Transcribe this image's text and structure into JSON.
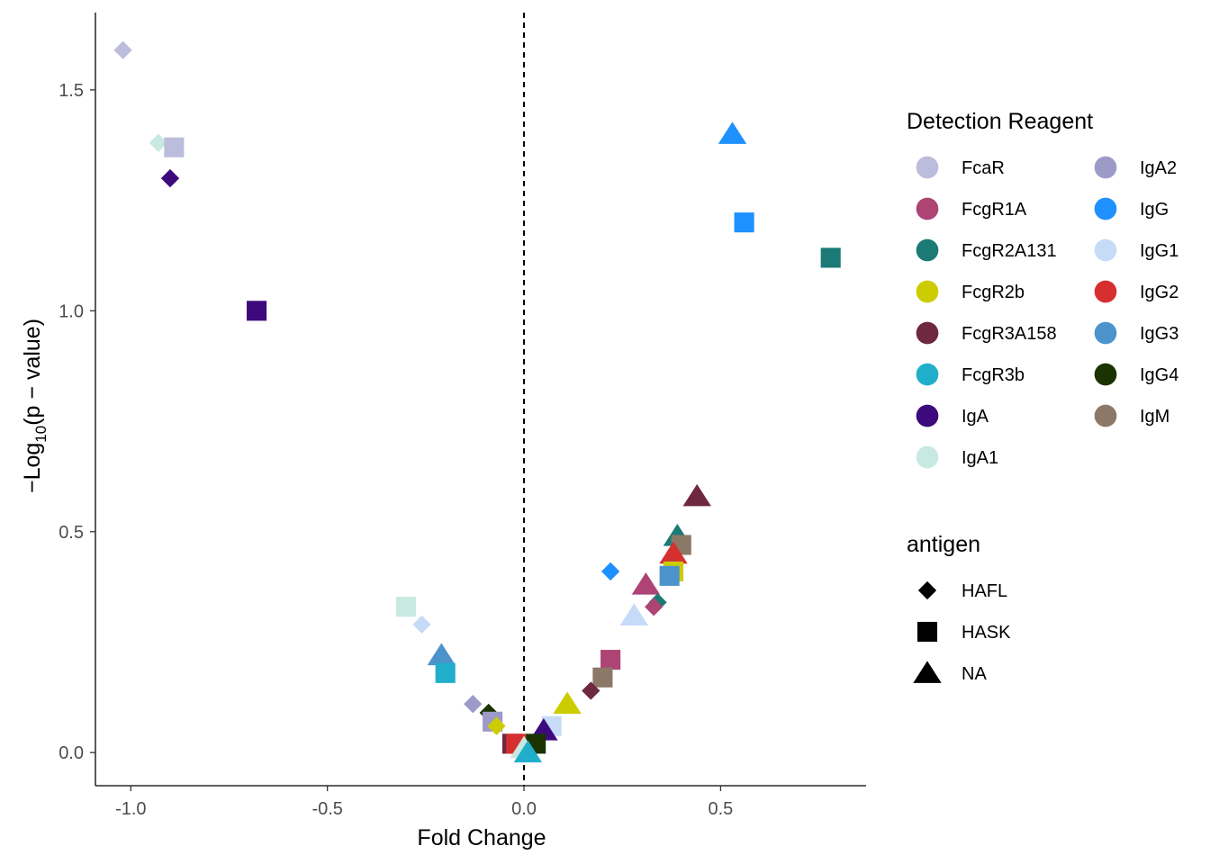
{
  "chart_data": {
    "type": "scatter",
    "xlabel": "Fold Change",
    "ylabel_parts": [
      "−Log",
      "10",
      "(p − value)"
    ],
    "xlim": [
      -1.09,
      0.87
    ],
    "ylim": [
      -0.075,
      1.675
    ],
    "x_ticks": [
      -1.0,
      -0.5,
      0.0,
      0.5
    ],
    "x_tick_labels": [
      "-1.0",
      "-0.5",
      "0.0",
      "0.5"
    ],
    "y_ticks": [
      0.0,
      0.5,
      1.0,
      1.5
    ],
    "y_tick_labels": [
      "0.0",
      "0.5",
      "1.0",
      "1.5"
    ],
    "vline_x": 0,
    "colors": {
      "FcaR": "#bcbddc",
      "FcgR1A": "#ad4474",
      "FcgR2A131": "#1b7a76",
      "FcgR2b": "#cccc00",
      "FcgR3A158": "#6e2840",
      "FcgR3b": "#21aecb",
      "IgA": "#3d0a7e",
      "IgA1": "#c7e9e2",
      "IgA2": "#9e9ac8",
      "IgG": "#1e90ff",
      "IgG1": "#c6dbf7",
      "IgG2": "#d62f2f",
      "IgG3": "#4c93cc",
      "IgG4": "#1a3300",
      "IgM": "#8c7867"
    },
    "legend_color": {
      "title": "Detection Reagent",
      "items": [
        "FcaR",
        "FcgR1A",
        "FcgR2A131",
        "FcgR2b",
        "FcgR3A158",
        "FcgR3b",
        "IgA",
        "IgA1",
        "IgA2",
        "IgG",
        "IgG1",
        "IgG2",
        "IgG3",
        "IgG4",
        "IgM"
      ]
    },
    "legend_shape": {
      "title": "antigen",
      "items": [
        {
          "label": "HAFL",
          "shape": "diamond"
        },
        {
          "label": "HASK",
          "shape": "square"
        },
        {
          "label": "NA",
          "shape": "triangle"
        }
      ]
    },
    "points": [
      {
        "x": -1.02,
        "y": 1.59,
        "reagent": "FcaR",
        "antigen": "HAFL"
      },
      {
        "x": -0.93,
        "y": 1.38,
        "reagent": "IgA1",
        "antigen": "HAFL"
      },
      {
        "x": -0.89,
        "y": 1.37,
        "reagent": "FcaR",
        "antigen": "HASK"
      },
      {
        "x": -0.9,
        "y": 1.3,
        "reagent": "IgA",
        "antigen": "HAFL"
      },
      {
        "x": -0.68,
        "y": 1.0,
        "reagent": "IgA",
        "antigen": "HASK"
      },
      {
        "x": 0.53,
        "y": 1.4,
        "reagent": "IgG",
        "antigen": "NA"
      },
      {
        "x": 0.56,
        "y": 1.2,
        "reagent": "IgG",
        "antigen": "HASK"
      },
      {
        "x": 0.78,
        "y": 1.12,
        "reagent": "FcgR2A131",
        "antigen": "HASK"
      },
      {
        "x": 0.44,
        "y": 0.58,
        "reagent": "FcgR3A158",
        "antigen": "NA"
      },
      {
        "x": 0.39,
        "y": 0.49,
        "reagent": "FcgR2A131",
        "antigen": "NA"
      },
      {
        "x": 0.4,
        "y": 0.47,
        "reagent": "IgM",
        "antigen": "HASK"
      },
      {
        "x": 0.38,
        "y": 0.45,
        "reagent": "IgG2",
        "antigen": "NA"
      },
      {
        "x": 0.38,
        "y": 0.41,
        "reagent": "FcgR2b",
        "antigen": "HASK"
      },
      {
        "x": 0.37,
        "y": 0.4,
        "reagent": "IgG3",
        "antigen": "HASK"
      },
      {
        "x": 0.22,
        "y": 0.41,
        "reagent": "IgG",
        "antigen": "HAFL"
      },
      {
        "x": 0.31,
        "y": 0.38,
        "reagent": "FcgR1A",
        "antigen": "NA"
      },
      {
        "x": 0.34,
        "y": 0.34,
        "reagent": "FcgR2A131",
        "antigen": "HAFL"
      },
      {
        "x": 0.33,
        "y": 0.33,
        "reagent": "FcgR1A",
        "antigen": "HAFL"
      },
      {
        "x": 0.28,
        "y": 0.31,
        "reagent": "IgG1",
        "antigen": "NA"
      },
      {
        "x": 0.22,
        "y": 0.21,
        "reagent": "FcgR1A",
        "antigen": "HASK"
      },
      {
        "x": 0.2,
        "y": 0.17,
        "reagent": "IgM",
        "antigen": "HASK"
      },
      {
        "x": 0.17,
        "y": 0.14,
        "reagent": "FcgR3A158",
        "antigen": "HAFL"
      },
      {
        "x": 0.11,
        "y": 0.11,
        "reagent": "FcgR2b",
        "antigen": "NA"
      },
      {
        "x": 0.07,
        "y": 0.06,
        "reagent": "IgG1",
        "antigen": "HASK"
      },
      {
        "x": 0.05,
        "y": 0.05,
        "reagent": "IgA",
        "antigen": "NA"
      },
      {
        "x": 0.03,
        "y": 0.02,
        "reagent": "IgG4",
        "antigen": "HASK"
      },
      {
        "x": -0.3,
        "y": 0.33,
        "reagent": "IgA1",
        "antigen": "HASK"
      },
      {
        "x": -0.26,
        "y": 0.29,
        "reagent": "IgG1",
        "antigen": "HAFL"
      },
      {
        "x": -0.21,
        "y": 0.22,
        "reagent": "IgG3",
        "antigen": "NA"
      },
      {
        "x": -0.2,
        "y": 0.18,
        "reagent": "FcgR3b",
        "antigen": "HASK"
      },
      {
        "x": -0.13,
        "y": 0.11,
        "reagent": "IgA2",
        "antigen": "HAFL"
      },
      {
        "x": -0.09,
        "y": 0.09,
        "reagent": "IgG4",
        "antigen": "HAFL"
      },
      {
        "x": -0.08,
        "y": 0.07,
        "reagent": "IgA2",
        "antigen": "HASK"
      },
      {
        "x": -0.07,
        "y": 0.06,
        "reagent": "FcgR2b",
        "antigen": "HAFL"
      },
      {
        "x": -0.03,
        "y": 0.02,
        "reagent": "FcgR3A158",
        "antigen": "HASK"
      },
      {
        "x": -0.02,
        "y": 0.02,
        "reagent": "IgG2",
        "antigen": "HASK"
      },
      {
        "x": 0.0,
        "y": 0.01,
        "reagent": "IgA1",
        "antigen": "NA"
      },
      {
        "x": 0.01,
        "y": 0.0,
        "reagent": "FcgR3b",
        "antigen": "NA"
      }
    ]
  }
}
